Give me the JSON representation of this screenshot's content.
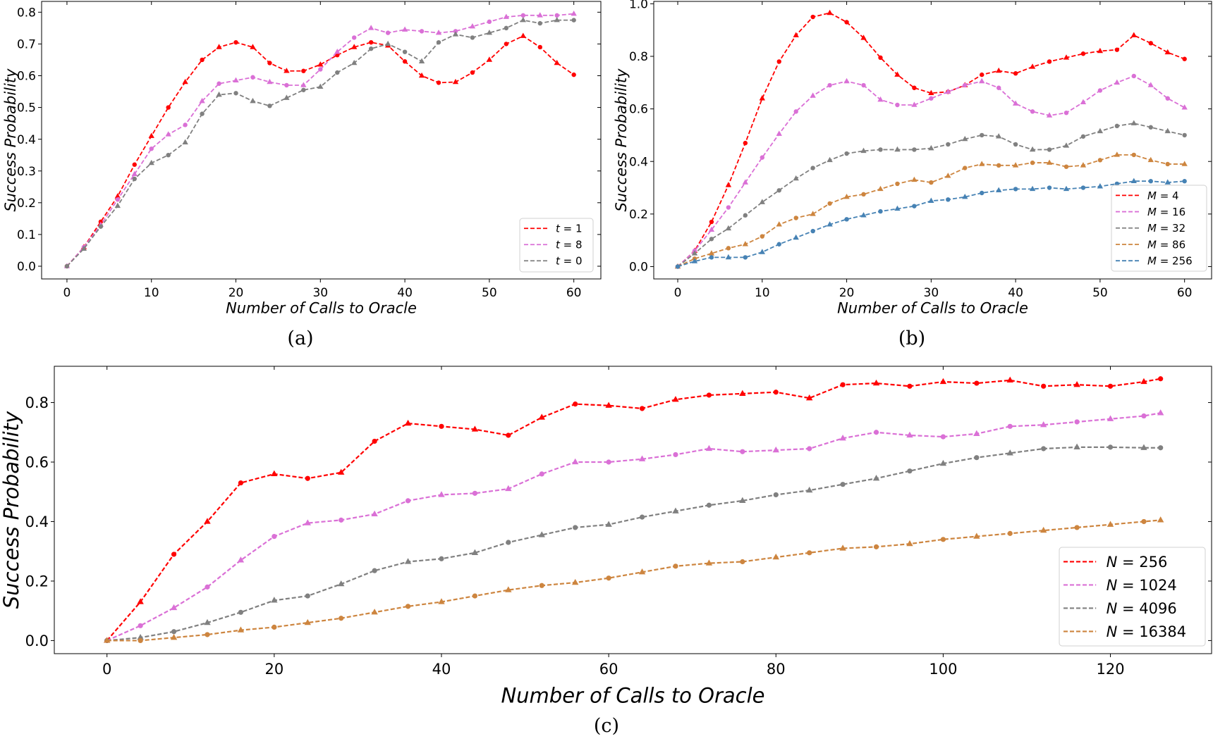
{
  "chart_data": [
    {
      "type": "line",
      "caption": "(a)",
      "xlabel": "Number of Calls to Oracle",
      "ylabel": "Success Probability",
      "xlim": [
        -3,
        63.2
      ],
      "ylim": [
        -0.04,
        0.834
      ],
      "xticks": [
        0,
        10,
        20,
        30,
        40,
        50,
        60
      ],
      "yticks": [
        0.0,
        0.1,
        0.2,
        0.3,
        0.4,
        0.5,
        0.6,
        0.7,
        0.8
      ],
      "ytick_labels": [
        "0.0",
        "0.1",
        "0.2",
        "0.3",
        "0.4",
        "0.5",
        "0.6",
        "0.7",
        "0.8"
      ],
      "grid": false,
      "legend": "lower-right",
      "x": [
        0,
        2,
        4,
        6,
        8,
        10,
        12,
        14,
        16,
        18,
        20,
        22,
        24,
        26,
        28,
        30,
        32,
        34,
        36,
        38,
        40,
        42,
        44,
        46,
        48,
        50,
        52,
        54,
        56,
        58,
        60
      ],
      "series": [
        {
          "name": "t = 1",
          "var": "t",
          "val": "1",
          "color": "#ff0000",
          "values": [
            0,
            0.06,
            0.14,
            0.22,
            0.32,
            0.41,
            0.5,
            0.58,
            0.65,
            0.69,
            0.705,
            0.69,
            0.64,
            0.615,
            0.615,
            0.635,
            0.665,
            0.69,
            0.705,
            0.695,
            0.645,
            0.6,
            0.578,
            0.58,
            0.61,
            0.65,
            0.7,
            0.725,
            0.69,
            0.64,
            0.603
          ]
        },
        {
          "name": "t = 8",
          "var": "t",
          "val": "8",
          "color": "#da70d6",
          "values": [
            0,
            0.06,
            0.13,
            0.21,
            0.29,
            0.37,
            0.415,
            0.445,
            0.52,
            0.575,
            0.585,
            0.595,
            0.58,
            0.57,
            0.57,
            0.62,
            0.675,
            0.72,
            0.75,
            0.735,
            0.745,
            0.74,
            0.735,
            0.74,
            0.755,
            0.77,
            0.785,
            0.79,
            0.79,
            0.79,
            0.795
          ]
        },
        {
          "name": "t = 0",
          "var": "t",
          "val": "0",
          "color": "#808080",
          "values": [
            0,
            0.055,
            0.125,
            0.19,
            0.275,
            0.325,
            0.35,
            0.39,
            0.48,
            0.54,
            0.545,
            0.52,
            0.505,
            0.53,
            0.555,
            0.565,
            0.61,
            0.64,
            0.685,
            0.7,
            0.675,
            0.645,
            0.705,
            0.73,
            0.72,
            0.735,
            0.75,
            0.775,
            0.765,
            0.775,
            0.775
          ]
        }
      ]
    },
    {
      "type": "line",
      "caption": "(b)",
      "xlabel": "Number of Calls to Oracle",
      "ylabel": "Success Probability",
      "xlim": [
        -2.84,
        63.2
      ],
      "ylim": [
        -0.047,
        1.009
      ],
      "xticks": [
        0,
        10,
        20,
        30,
        40,
        50,
        60
      ],
      "yticks": [
        0.0,
        0.2,
        0.4,
        0.6,
        0.8,
        1.0
      ],
      "ytick_labels": [
        "0.0",
        "0.2",
        "0.4",
        "0.6",
        "0.8",
        "1.0"
      ],
      "grid": false,
      "legend": "lower-right",
      "x": [
        0,
        2,
        4,
        6,
        8,
        10,
        12,
        14,
        16,
        18,
        20,
        22,
        24,
        26,
        28,
        30,
        32,
        34,
        36,
        38,
        40,
        42,
        44,
        46,
        48,
        50,
        52,
        54,
        56,
        58,
        60
      ],
      "series": [
        {
          "name": "M = 4",
          "var": "M",
          "val": "4",
          "color": "#ff0000",
          "values": [
            0,
            0.06,
            0.17,
            0.31,
            0.47,
            0.64,
            0.78,
            0.88,
            0.95,
            0.965,
            0.93,
            0.87,
            0.795,
            0.73,
            0.68,
            0.66,
            0.665,
            0.69,
            0.73,
            0.745,
            0.735,
            0.76,
            0.78,
            0.795,
            0.81,
            0.82,
            0.825,
            0.88,
            0.85,
            0.815,
            0.79
          ]
        },
        {
          "name": "M = 16",
          "var": "M",
          "val": "16",
          "color": "#da70d6",
          "values": [
            0,
            0.06,
            0.14,
            0.225,
            0.32,
            0.415,
            0.505,
            0.59,
            0.65,
            0.69,
            0.705,
            0.69,
            0.635,
            0.615,
            0.615,
            0.64,
            0.665,
            0.69,
            0.705,
            0.68,
            0.62,
            0.59,
            0.575,
            0.585,
            0.625,
            0.67,
            0.7,
            0.725,
            0.69,
            0.64,
            0.605
          ]
        },
        {
          "name": "M = 32",
          "var": "M",
          "val": "32",
          "color": "#808080",
          "values": [
            0,
            0.05,
            0.105,
            0.145,
            0.195,
            0.245,
            0.29,
            0.335,
            0.375,
            0.405,
            0.43,
            0.44,
            0.445,
            0.445,
            0.445,
            0.45,
            0.465,
            0.485,
            0.5,
            0.495,
            0.465,
            0.445,
            0.445,
            0.46,
            0.495,
            0.515,
            0.535,
            0.545,
            0.53,
            0.515,
            0.5
          ]
        },
        {
          "name": "M = 86",
          "var": "M",
          "val": "86",
          "color": "#cd853f",
          "values": [
            0,
            0.03,
            0.05,
            0.07,
            0.085,
            0.115,
            0.16,
            0.185,
            0.2,
            0.24,
            0.265,
            0.275,
            0.295,
            0.315,
            0.33,
            0.32,
            0.345,
            0.375,
            0.39,
            0.385,
            0.385,
            0.395,
            0.395,
            0.38,
            0.385,
            0.405,
            0.425,
            0.425,
            0.405,
            0.39,
            0.39
          ]
        },
        {
          "name": "M = 256",
          "var": "M",
          "val": "256",
          "color": "#4682b4",
          "values": [
            0,
            0.02,
            0.035,
            0.035,
            0.035,
            0.055,
            0.085,
            0.11,
            0.135,
            0.16,
            0.18,
            0.195,
            0.21,
            0.22,
            0.23,
            0.25,
            0.255,
            0.265,
            0.28,
            0.29,
            0.295,
            0.295,
            0.3,
            0.295,
            0.3,
            0.305,
            0.315,
            0.325,
            0.325,
            0.32,
            0.325
          ]
        }
      ]
    },
    {
      "type": "line",
      "caption": "(c)",
      "xlabel": "Number of Calls to Oracle",
      "ylabel": "Success Probability",
      "xlim": [
        -6.3,
        132.1
      ],
      "ylim": [
        -0.044,
        0.922
      ],
      "xticks": [
        0,
        20,
        40,
        60,
        80,
        100,
        120
      ],
      "yticks": [
        0.0,
        0.2,
        0.4,
        0.6,
        0.8
      ],
      "ytick_labels": [
        "0.0",
        "0.2",
        "0.4",
        "0.6",
        "0.8"
      ],
      "grid": false,
      "legend": "lower-right",
      "x": [
        0,
        4,
        8,
        12,
        16,
        20,
        24,
        28,
        32,
        36,
        40,
        44,
        48,
        52,
        56,
        60,
        64,
        68,
        72,
        76,
        80,
        84,
        88,
        92,
        96,
        100,
        104,
        108,
        112,
        116,
        120,
        124,
        126
      ],
      "series": [
        {
          "name": "N = 256",
          "var": "N",
          "val": "256",
          "color": "#ff0000",
          "values": [
            0,
            0.13,
            0.29,
            0.4,
            0.53,
            0.56,
            0.545,
            0.565,
            0.67,
            0.73,
            0.72,
            0.71,
            0.69,
            0.75,
            0.795,
            0.79,
            0.78,
            0.81,
            0.825,
            0.83,
            0.835,
            0.815,
            0.86,
            0.865,
            0.855,
            0.87,
            0.865,
            0.875,
            0.855,
            0.86,
            0.855,
            0.87,
            0.88
          ]
        },
        {
          "name": "N = 1024",
          "var": "N",
          "val": "1024",
          "color": "#da70d6",
          "values": [
            0,
            0.05,
            0.11,
            0.18,
            0.27,
            0.35,
            0.395,
            0.405,
            0.425,
            0.47,
            0.49,
            0.495,
            0.51,
            0.56,
            0.6,
            0.6,
            0.61,
            0.625,
            0.645,
            0.635,
            0.64,
            0.645,
            0.68,
            0.7,
            0.69,
            0.685,
            0.695,
            0.72,
            0.725,
            0.735,
            0.745,
            0.755,
            0.765
          ]
        },
        {
          "name": "N = 4096",
          "var": "N",
          "val": "4096",
          "color": "#808080",
          "values": [
            0,
            0.01,
            0.03,
            0.06,
            0.095,
            0.135,
            0.15,
            0.19,
            0.235,
            0.265,
            0.275,
            0.295,
            0.33,
            0.355,
            0.38,
            0.39,
            0.415,
            0.435,
            0.455,
            0.47,
            0.49,
            0.505,
            0.525,
            0.545,
            0.57,
            0.595,
            0.615,
            0.63,
            0.645,
            0.65,
            0.65,
            0.648,
            0.648
          ]
        },
        {
          "name": "N = 16384",
          "var": "N",
          "val": "16384",
          "color": "#cd853f",
          "values": [
            0,
            0.0,
            0.01,
            0.02,
            0.035,
            0.045,
            0.06,
            0.075,
            0.095,
            0.115,
            0.13,
            0.15,
            0.17,
            0.185,
            0.195,
            0.21,
            0.23,
            0.25,
            0.26,
            0.265,
            0.28,
            0.295,
            0.31,
            0.315,
            0.325,
            0.34,
            0.35,
            0.36,
            0.37,
            0.38,
            0.39,
            0.4,
            0.405
          ]
        }
      ]
    }
  ]
}
